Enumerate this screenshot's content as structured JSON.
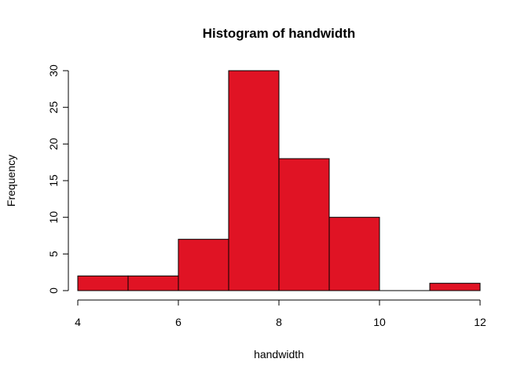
{
  "chart_data": {
    "type": "bar",
    "title": "Histogram of handwidth",
    "xlabel": "handwidth",
    "ylabel": "Frequency",
    "bins": [
      {
        "start": 4,
        "end": 5,
        "count": 2
      },
      {
        "start": 5,
        "end": 6,
        "count": 2
      },
      {
        "start": 6,
        "end": 7,
        "count": 7
      },
      {
        "start": 7,
        "end": 8,
        "count": 30
      },
      {
        "start": 8,
        "end": 9,
        "count": 18
      },
      {
        "start": 9,
        "end": 10,
        "count": 10
      },
      {
        "start": 10,
        "end": 11,
        "count": 0
      },
      {
        "start": 11,
        "end": 12,
        "count": 1
      }
    ],
    "xlim": [
      4,
      12
    ],
    "ylim": [
      0,
      30
    ],
    "x_ticks": [
      4,
      6,
      8,
      10,
      12
    ],
    "y_ticks": [
      0,
      5,
      10,
      15,
      20,
      25,
      30
    ],
    "bar_color": "#e01324",
    "grid": false
  }
}
